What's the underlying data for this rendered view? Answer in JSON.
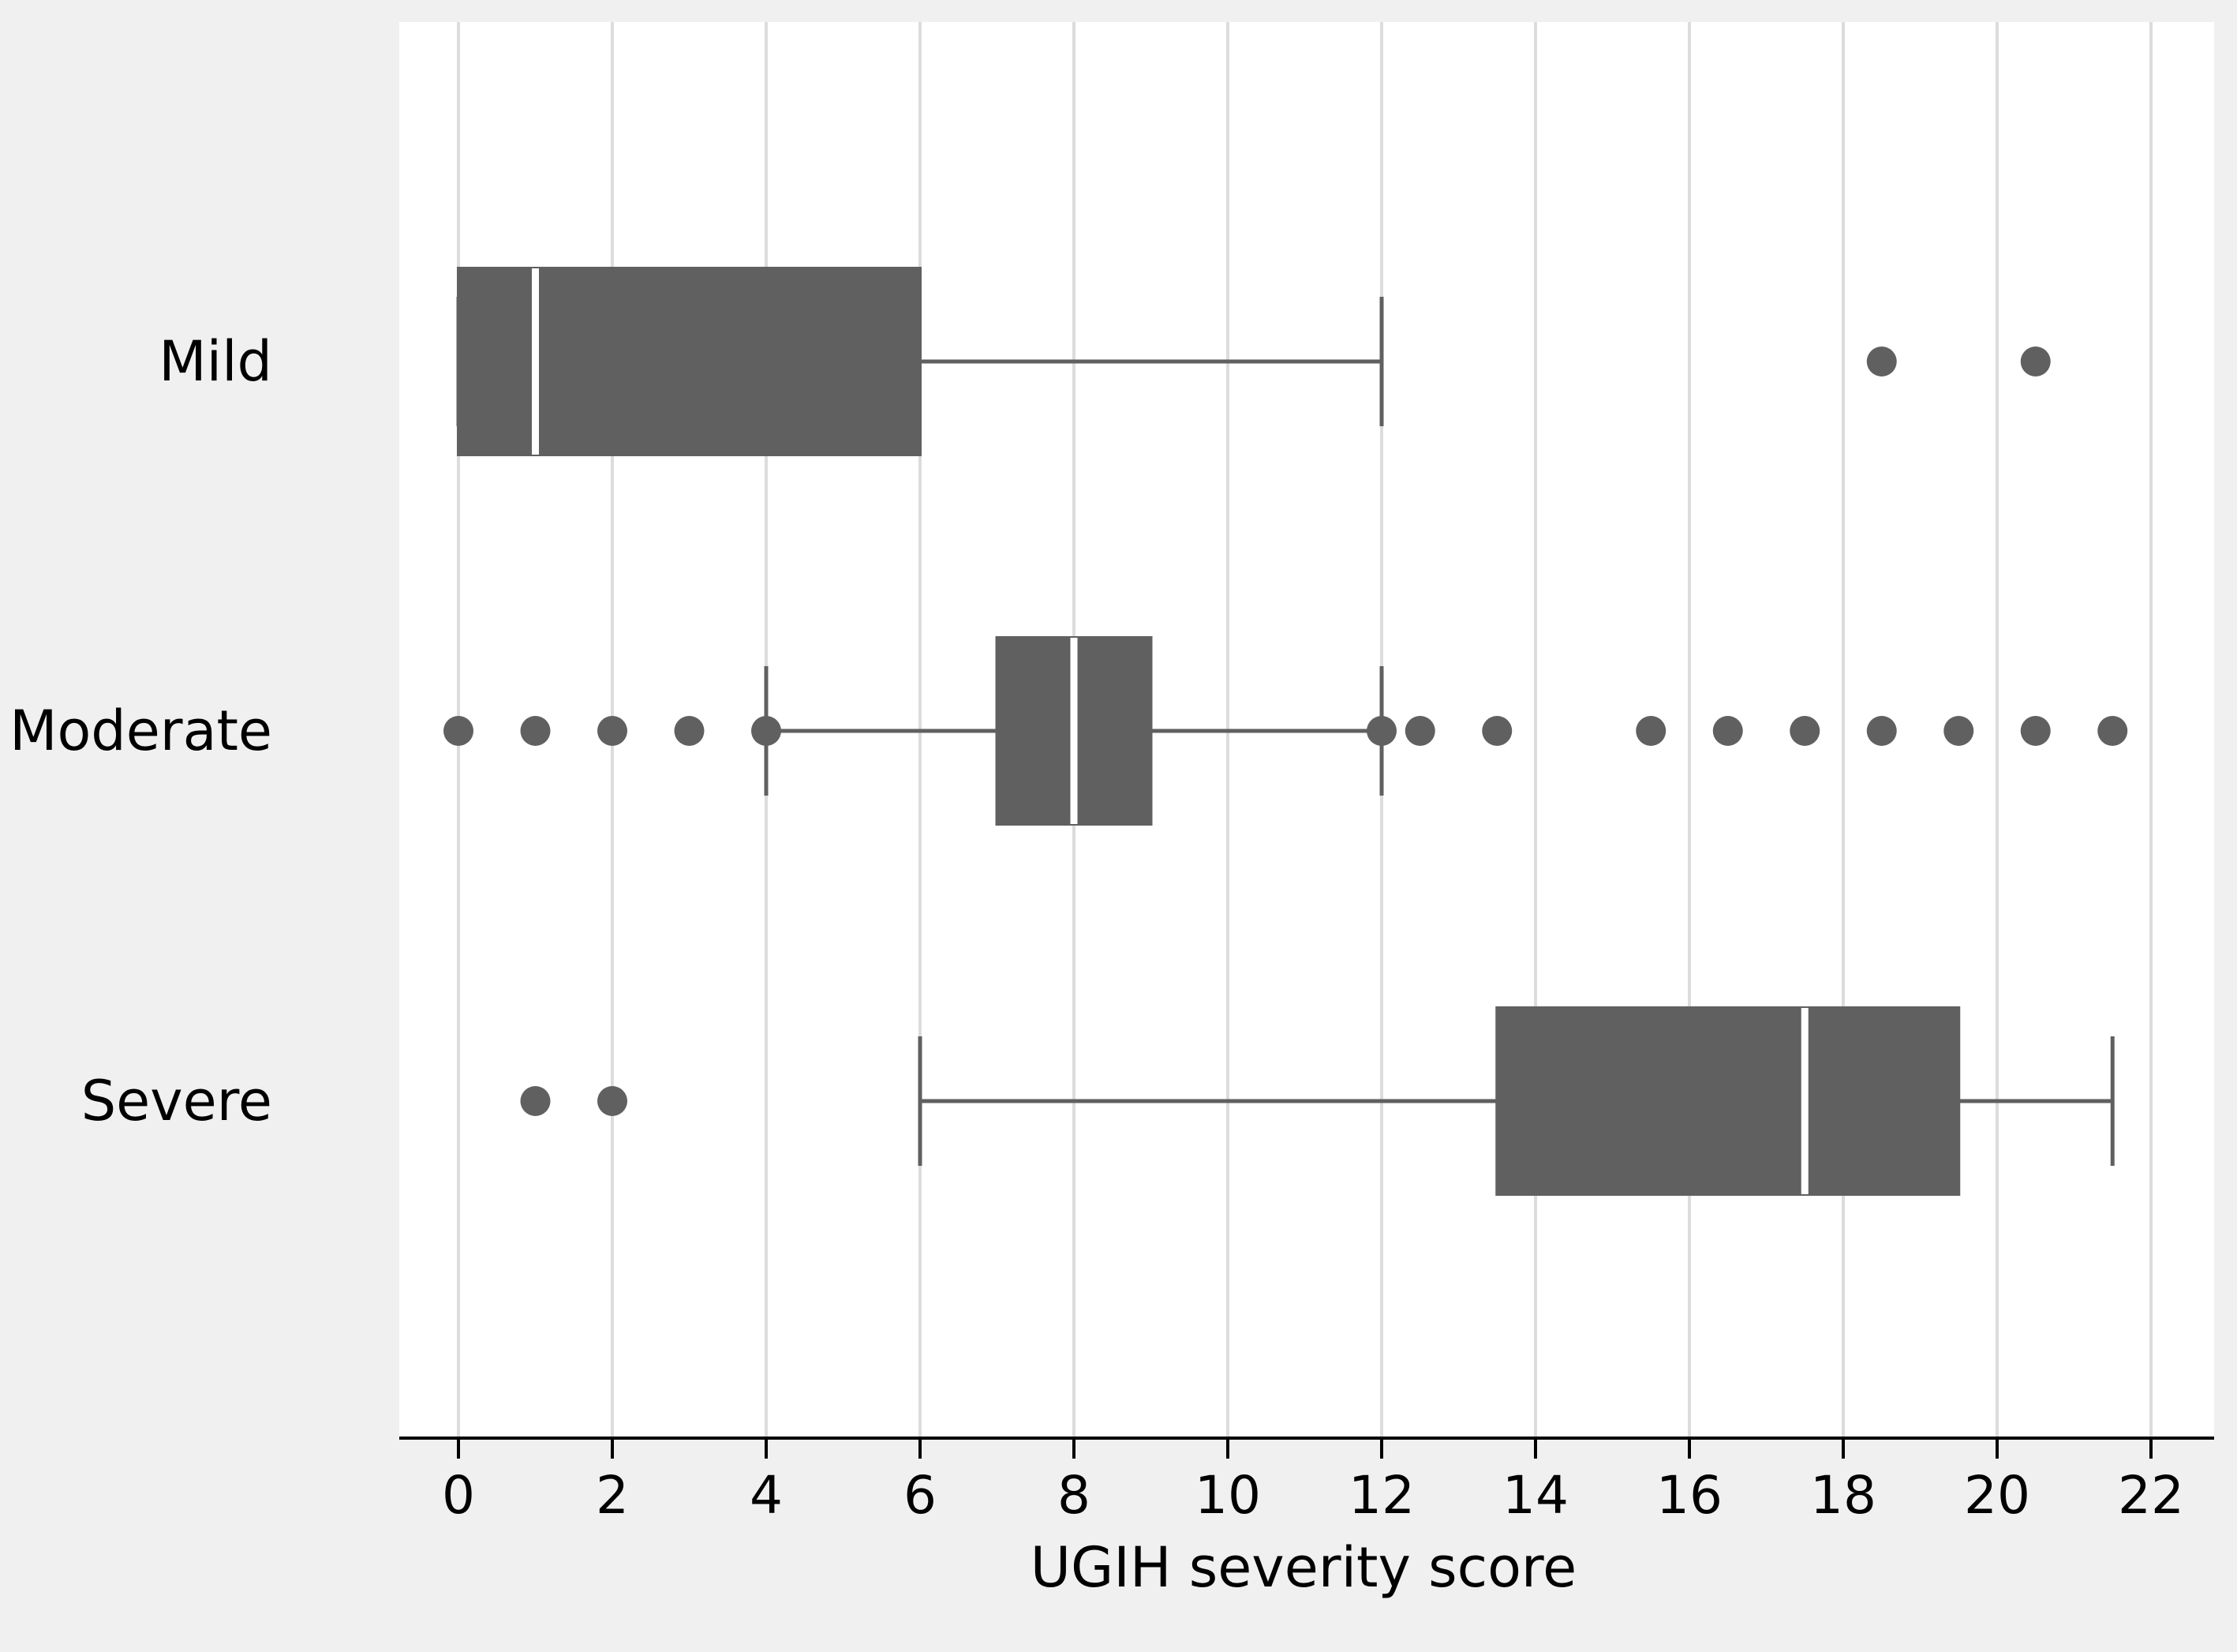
{
  "chart_data": {
    "type": "boxplot",
    "orientation": "horizontal",
    "title": "",
    "xlabel": "UGIH severity score",
    "ylabel": "",
    "xlim": [
      -0.8,
      22.7
    ],
    "xticks": [
      0,
      2,
      4,
      6,
      8,
      10,
      12,
      14,
      16,
      18,
      20,
      22
    ],
    "xtick_labels": [
      "0",
      "2",
      "4",
      "6",
      "8",
      "10",
      "12",
      "14",
      "16",
      "18",
      "20",
      "22"
    ],
    "grid": "vertical",
    "categories": [
      "Mild",
      "Moderate",
      "Severe"
    ],
    "series": [
      {
        "category": "Mild",
        "whisker_low": 0,
        "q1": 0,
        "median": 1,
        "q3": 6,
        "whisker_high": 12,
        "outliers": [
          18.5,
          20.5
        ]
      },
      {
        "category": "Moderate",
        "whisker_low": 4,
        "q1": 7,
        "median": 8,
        "q3": 9,
        "whisker_high": 12,
        "outliers": [
          0,
          1,
          2,
          3,
          4,
          12,
          12.5,
          13.5,
          15.5,
          16.5,
          17.5,
          18.5,
          19.5,
          20.5,
          21.5
        ]
      },
      {
        "category": "Severe",
        "whisker_low": 6,
        "q1": 13.5,
        "median": 17.5,
        "q3": 19.5,
        "whisker_high": 21.5,
        "outliers": [
          1,
          2
        ]
      }
    ],
    "colors": {
      "box": "#606060",
      "median_line": "#ffffff",
      "whisker": "#606060",
      "outlier": "#606060",
      "grid": "#dcdcdc",
      "plot_background": "#ffffff",
      "page_background": "#f0f0f0",
      "axis": "#000000"
    }
  }
}
